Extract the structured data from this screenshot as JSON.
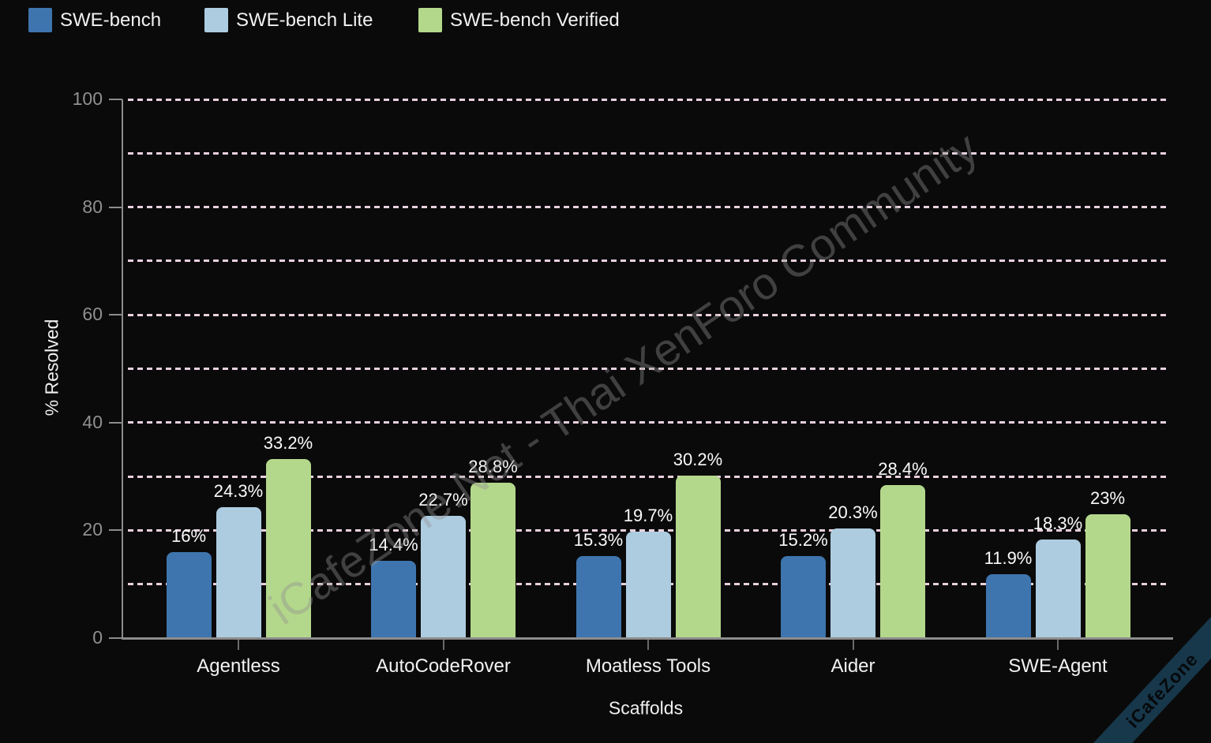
{
  "legend": {
    "items": [
      {
        "label": "SWE-bench",
        "color": "#3e75ae"
      },
      {
        "label": "SWE-bench Lite",
        "color": "#adcce0"
      },
      {
        "label": "SWE-bench Verified",
        "color": "#b4d88b"
      }
    ]
  },
  "chart_data": {
    "type": "bar",
    "title": "",
    "xlabel": "Scaffolds",
    "ylabel": "% Resolved",
    "categories": [
      "Agentless",
      "AutoCodeRover",
      "Moatless Tools",
      "Aider",
      "SWE-Agent"
    ],
    "series": [
      {
        "name": "SWE-bench",
        "color": "#3e75ae",
        "values": [
          16,
          14.4,
          15.3,
          15.2,
          11.9
        ],
        "labels": [
          "16%",
          "14.4%",
          "15.3%",
          "15.2%",
          "11.9%"
        ]
      },
      {
        "name": "SWE-bench Lite",
        "color": "#adcce0",
        "values": [
          24.3,
          22.7,
          19.7,
          20.3,
          18.3
        ],
        "labels": [
          "24.3%",
          "22.7%",
          "19.7%",
          "20.3%",
          "18.3%"
        ]
      },
      {
        "name": "SWE-bench Verified",
        "color": "#b4d88b",
        "values": [
          33.2,
          28.8,
          30.2,
          28.4,
          23
        ],
        "labels": [
          "33.2%",
          "28.8%",
          "30.2%",
          "28.4%",
          "23%"
        ]
      }
    ],
    "ylim": [
      0,
      100
    ],
    "yticks": [
      0,
      20,
      40,
      60,
      80,
      100
    ],
    "gridline_step": 10,
    "grid": "horizontal dashed",
    "gridline_color": "#e8d0de",
    "legend_position": "top-left",
    "background_color": "#0a0a0a"
  },
  "watermark": {
    "diagonal_text": "iCafeZone.Net - Thai XenForo Community",
    "corner_ribbon_text": "iCafeZone"
  }
}
